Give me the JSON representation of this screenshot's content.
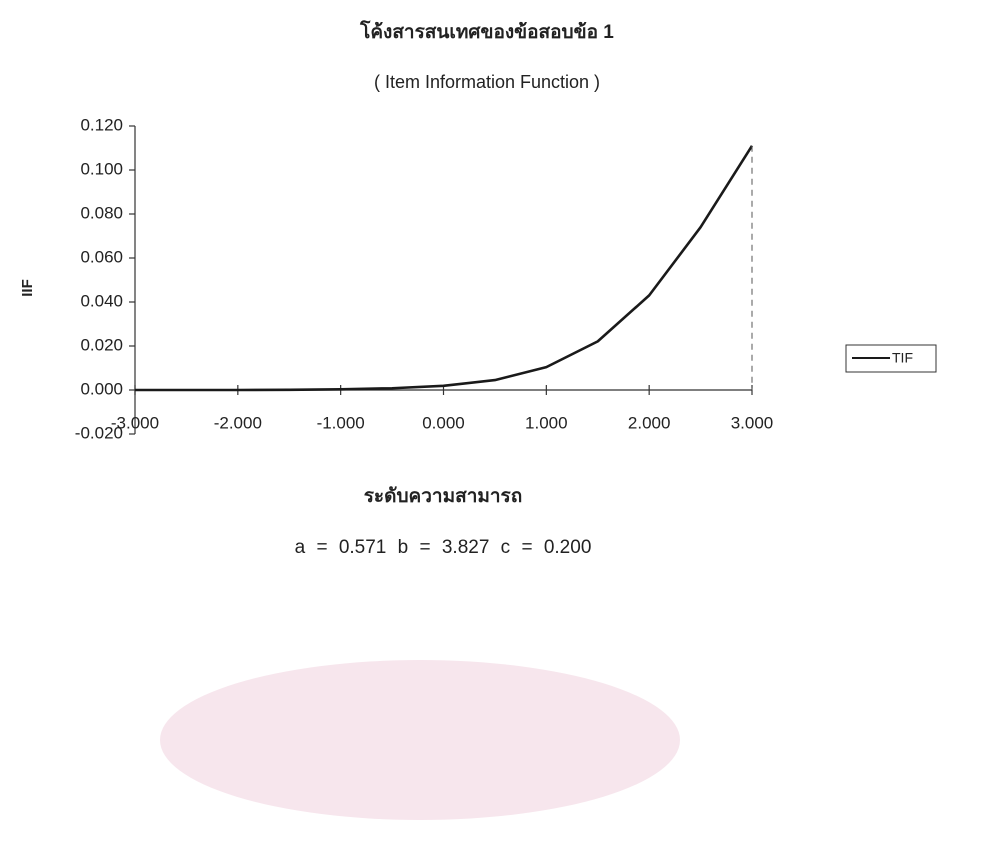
{
  "chart_data": {
    "type": "line",
    "title": "โค้งสารสนเทศของข้อสอบข้อ 1",
    "subtitle": "( Item Information Function )",
    "y_label": "IIF",
    "x_label": "ระดับความสามารถ",
    "annotation": "a = 0.571 b = 3.827 c = 0.200",
    "x": [
      -3,
      -2.5,
      -2,
      -1.5,
      -1,
      -0.5,
      0,
      0.5,
      1,
      1.5,
      2,
      2.5,
      3
    ],
    "series": [
      {
        "name": "TIF",
        "color": "#1a1a1a",
        "values": [
          0,
          0,
          0,
          0.0001,
          0.0003,
          0.0008,
          0.0019,
          0.0045,
          0.0104,
          0.0221,
          0.043,
          0.074,
          0.111
        ]
      }
    ],
    "xlim": [
      -3,
      3
    ],
    "xticks": [
      {
        "value": -3,
        "label": "-3.000"
      },
      {
        "value": -2,
        "label": "-2.000"
      },
      {
        "value": -1,
        "label": "-1.000"
      },
      {
        "value": 0,
        "label": "0.000"
      },
      {
        "value": 1,
        "label": "1.000"
      },
      {
        "value": 2,
        "label": "2.000"
      },
      {
        "value": 3,
        "label": "3.000"
      }
    ],
    "ylim": [
      -0.02,
      0.12
    ],
    "yticks": [
      {
        "value": -0.02,
        "label": "-0.020"
      },
      {
        "value": 0,
        "label": "0.000"
      },
      {
        "value": 0.02,
        "label": "0.020"
      },
      {
        "value": 0.04,
        "label": "0.040"
      },
      {
        "value": 0.06,
        "label": "0.060"
      },
      {
        "value": 0.08,
        "label": "0.080"
      },
      {
        "value": 0.1,
        "label": "0.100"
      },
      {
        "value": 0.12,
        "label": "0.120"
      }
    ],
    "legend": "right"
  }
}
